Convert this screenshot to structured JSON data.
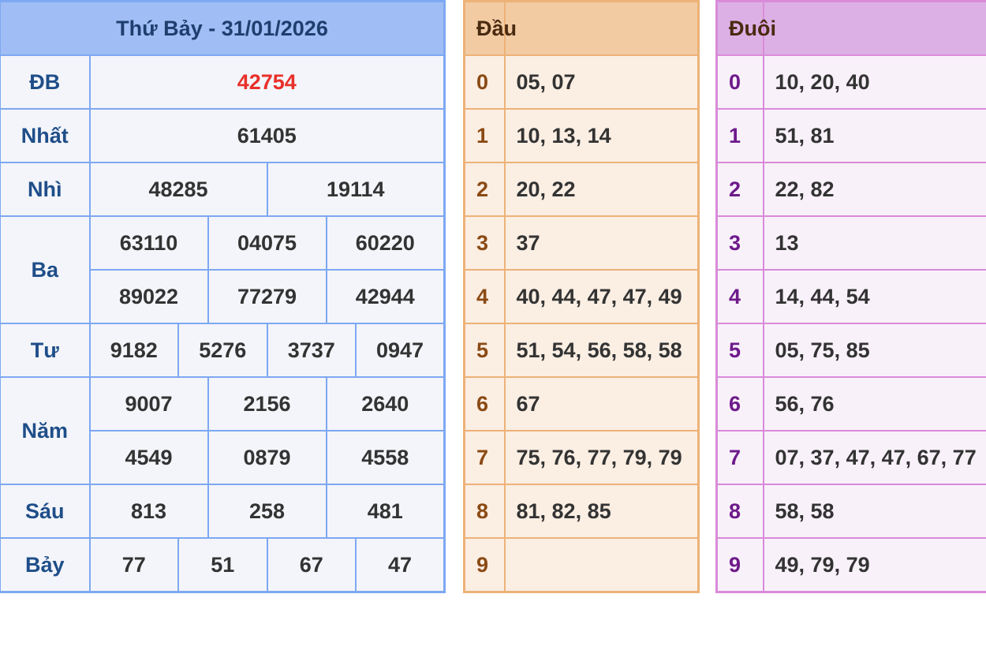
{
  "results": {
    "title": "Thứ Bảy - 31/01/2026",
    "prizes": [
      {
        "label": "ĐB",
        "rows": [
          [
            "42754"
          ]
        ],
        "special": true
      },
      {
        "label": "Nhất",
        "rows": [
          [
            "61405"
          ]
        ]
      },
      {
        "label": "Nhì",
        "rows": [
          [
            "48285",
            "19114"
          ]
        ]
      },
      {
        "label": "Ba",
        "rows": [
          [
            "63110",
            "04075",
            "60220"
          ],
          [
            "89022",
            "77279",
            "42944"
          ]
        ]
      },
      {
        "label": "Tư",
        "rows": [
          [
            "9182",
            "5276",
            "3737",
            "0947"
          ]
        ]
      },
      {
        "label": "Năm",
        "rows": [
          [
            "9007",
            "2156",
            "2640"
          ],
          [
            "4549",
            "0879",
            "4558"
          ]
        ]
      },
      {
        "label": "Sáu",
        "rows": [
          [
            "813",
            "258",
            "481"
          ]
        ]
      },
      {
        "label": "Bảy",
        "rows": [
          [
            "77",
            "51",
            "67",
            "47"
          ]
        ]
      }
    ]
  },
  "dau": {
    "header": "Đầu",
    "header_value": "",
    "rows": [
      {
        "key": "0",
        "value": "05, 07"
      },
      {
        "key": "1",
        "value": "10, 13, 14"
      },
      {
        "key": "2",
        "value": "20, 22"
      },
      {
        "key": "3",
        "value": "37"
      },
      {
        "key": "4",
        "value": "40, 44, 47, 47, 49"
      },
      {
        "key": "5",
        "value": "51, 54, 56, 58, 58"
      },
      {
        "key": "6",
        "value": "67"
      },
      {
        "key": "7",
        "value": "75, 76, 77, 79, 79"
      },
      {
        "key": "8",
        "value": "81, 82, 85"
      },
      {
        "key": "9",
        "value": ""
      }
    ]
  },
  "duoi": {
    "header": "Đuôi",
    "header_value": "",
    "rows": [
      {
        "key": "0",
        "value": "10, 20, 40"
      },
      {
        "key": "1",
        "value": "51, 81"
      },
      {
        "key": "2",
        "value": "22, 82"
      },
      {
        "key": "3",
        "value": "13"
      },
      {
        "key": "4",
        "value": "14, 44, 54"
      },
      {
        "key": "5",
        "value": "05, 75, 85"
      },
      {
        "key": "6",
        "value": "56, 76"
      },
      {
        "key": "7",
        "value": "07, 37, 47, 47, 67, 77"
      },
      {
        "key": "8",
        "value": "58, 58"
      },
      {
        "key": "9",
        "value": "49, 79, 79"
      }
    ]
  },
  "colors": {
    "special_prize": "#e8302a",
    "results_accent": "#7ea8f2",
    "dau_accent": "#edb277",
    "duoi_accent": "#d98bd9"
  }
}
